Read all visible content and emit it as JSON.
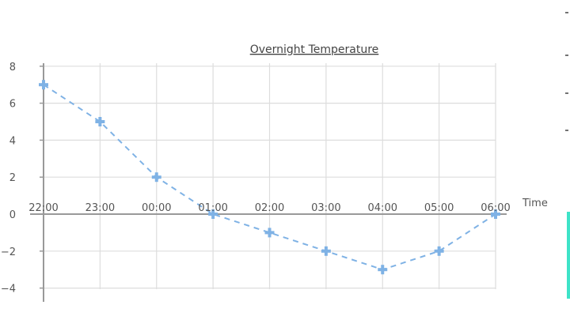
{
  "chart_data": {
    "type": "line",
    "title": "Overnight Temperature",
    "xlabel": "Time",
    "ylabel": "",
    "categories": [
      "22:00",
      "23:00",
      "00:00",
      "01:00",
      "02:00",
      "03:00",
      "04:00",
      "05:00",
      "06:00"
    ],
    "series": [
      {
        "values": [
          7,
          5,
          2,
          0,
          -1,
          -2,
          -3,
          -2,
          0
        ]
      }
    ],
    "yticks": [
      -4,
      -2,
      0,
      2,
      4,
      6,
      8
    ],
    "ylim": [
      -5,
      9
    ],
    "grid": true,
    "legend": "none",
    "marker": "cross",
    "line_style": "dashed",
    "colors": {
      "series": "#7fb2e5",
      "grid": "#dddddd",
      "axis": "#999999",
      "text": "#555555",
      "edge_accent": "#3ee3c8"
    }
  }
}
